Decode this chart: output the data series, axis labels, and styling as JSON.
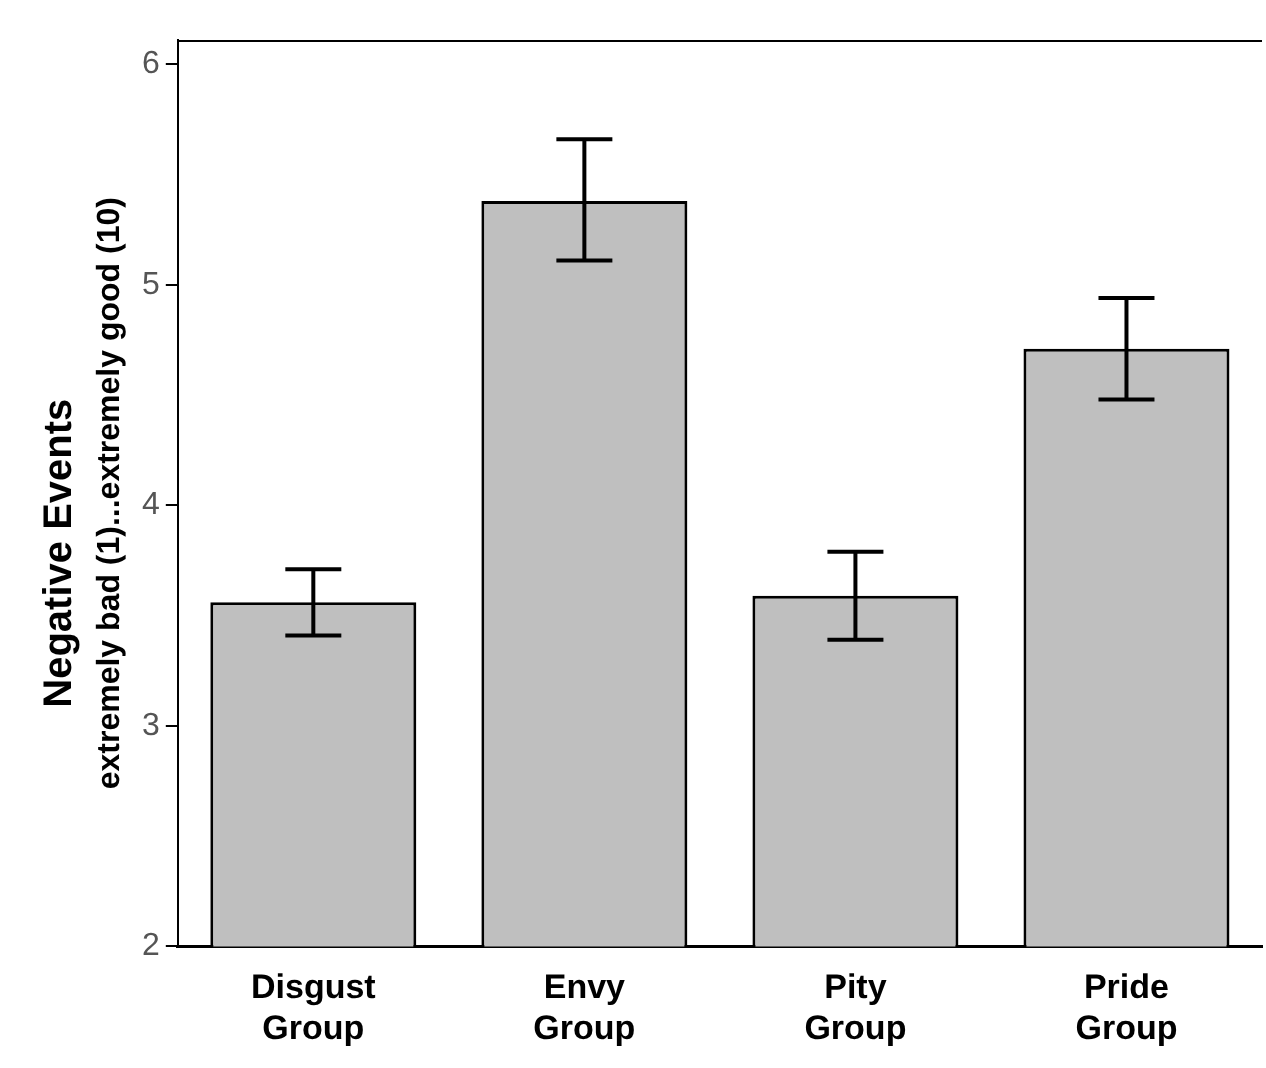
{
  "chart_data": {
    "type": "bar",
    "ylabel": "Negative Events\nextremely bad (1)...extremely good (10)",
    "categories": [
      "Disgust Group",
      "Envy Group",
      "Pity Group",
      "Pride Group"
    ],
    "values": [
      3.56,
      5.38,
      3.59,
      4.71
    ],
    "errors": [
      [
        3.41,
        3.71
      ],
      [
        5.11,
        5.66
      ],
      [
        3.39,
        3.79
      ],
      [
        4.48,
        4.94
      ]
    ],
    "color": "#bfbfbf",
    "ylim": [
      2,
      6.11
    ],
    "yticks": [
      2,
      3,
      4,
      5,
      6
    ],
    "grid": false,
    "legend": false
  }
}
